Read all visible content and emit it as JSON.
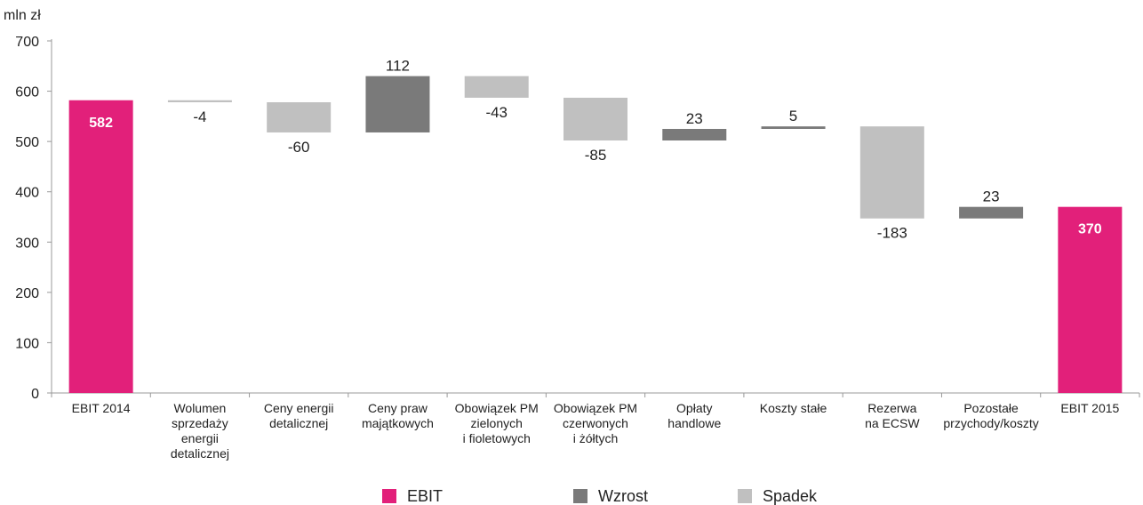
{
  "chart_data": {
    "type": "waterfall",
    "ylabel": "mln zł",
    "ylim": [
      0,
      700
    ],
    "yticks": [
      "0",
      "100",
      "200",
      "300",
      "400",
      "500",
      "600",
      "700"
    ],
    "grid": false,
    "legend_position": "bottom",
    "colors": {
      "EBIT": "#e2207a",
      "Wzrost": "#7a7a7a",
      "Spadek": "#c0c0c0"
    },
    "categories": [
      [
        "EBIT 2014"
      ],
      [
        "Wolumen",
        "sprzedaży",
        "energii",
        "detalicznej"
      ],
      [
        "Ceny energii",
        "detalicznej"
      ],
      [
        "Ceny praw",
        "majątkowych"
      ],
      [
        "Obowiązek PM",
        "zielonych",
        "i fioletowych"
      ],
      [
        "Obowiązek PM",
        "czerwonych",
        "i żółtych"
      ],
      [
        "Opłaty",
        "handlowe"
      ],
      [
        "Koszty stałe"
      ],
      [
        "Rezerwa",
        "na ECSW"
      ],
      [
        "Pozostałe",
        "przychody/koszty"
      ],
      [
        "EBIT 2015"
      ]
    ],
    "bars": [
      {
        "kind": "EBIT",
        "value": 582,
        "label": "582",
        "base": 0,
        "top": 582
      },
      {
        "kind": "Spadek",
        "value": -4,
        "label": "-4",
        "base": 578,
        "top": 582
      },
      {
        "kind": "Spadek",
        "value": -60,
        "label": "-60",
        "base": 518,
        "top": 578
      },
      {
        "kind": "Wzrost",
        "value": 112,
        "label": "112",
        "base": 518,
        "top": 630
      },
      {
        "kind": "Spadek",
        "value": -43,
        "label": "-43",
        "base": 587,
        "top": 630
      },
      {
        "kind": "Spadek",
        "value": -85,
        "label": "-85",
        "base": 502,
        "top": 587
      },
      {
        "kind": "Wzrost",
        "value": 23,
        "label": "23",
        "base": 502,
        "top": 525
      },
      {
        "kind": "Wzrost",
        "value": 5,
        "label": "5",
        "base": 525,
        "top": 530
      },
      {
        "kind": "Spadek",
        "value": -183,
        "label": "-183",
        "base": 347,
        "top": 530
      },
      {
        "kind": "Wzrost",
        "value": 23,
        "label": "23",
        "base": 347,
        "top": 370
      },
      {
        "kind": "EBIT",
        "value": 370,
        "label": "370",
        "base": 0,
        "top": 370
      }
    ],
    "legend": [
      {
        "kind": "EBIT",
        "label": "EBIT"
      },
      {
        "kind": "Wzrost",
        "label": "Wzrost"
      },
      {
        "kind": "Spadek",
        "label": "Spadek"
      }
    ]
  }
}
